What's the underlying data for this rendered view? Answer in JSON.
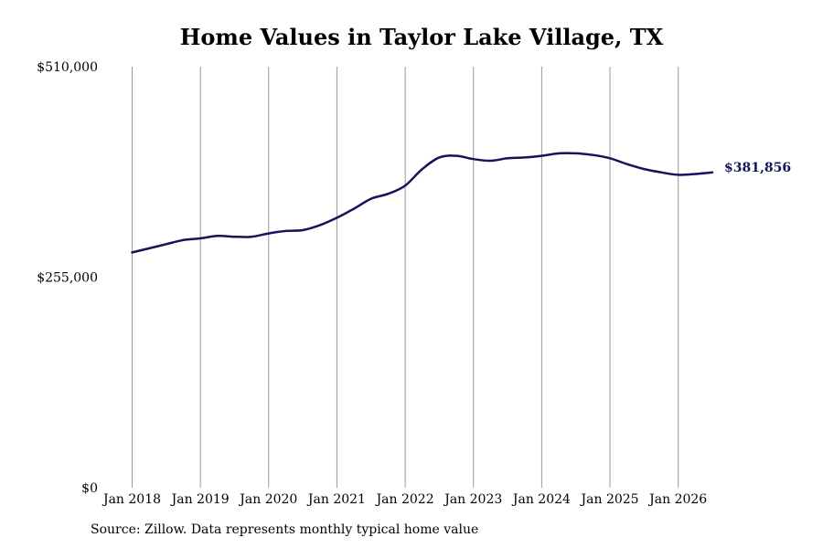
{
  "chart_data": {
    "type": "line",
    "title": "Home Values in Taylor Lake Village, TX",
    "xlabel": "",
    "ylabel": "",
    "ylim": [
      0,
      510000
    ],
    "y_ticks": [
      "$0",
      "$255,000",
      "$510,000"
    ],
    "x_ticks": [
      "Jan 2018",
      "Jan 2019",
      "Jan 2020",
      "Jan 2021",
      "Jan 2022",
      "Jan 2023",
      "Jan 2024",
      "Jan 2025",
      "Jan 2026"
    ],
    "grid": "vertical",
    "series": [
      {
        "color": "#14145c",
        "end_label": "$381,856",
        "x": [
          "2018-01",
          "2018-04",
          "2018-07",
          "2018-10",
          "2019-01",
          "2019-04",
          "2019-07",
          "2019-10",
          "2020-01",
          "2020-04",
          "2020-07",
          "2020-10",
          "2021-01",
          "2021-04",
          "2021-07",
          "2021-10",
          "2022-01",
          "2022-04",
          "2022-07",
          "2022-10",
          "2023-01",
          "2023-04",
          "2023-07",
          "2023-10",
          "2024-01",
          "2024-04",
          "2024-07",
          "2024-10",
          "2025-01",
          "2025-04",
          "2025-07",
          "2025-10",
          "2026-01",
          "2026-04",
          "2026-07"
        ],
        "values": [
          285000,
          290000,
          295000,
          300000,
          302000,
          305000,
          304000,
          304000,
          308000,
          311000,
          312000,
          318000,
          327000,
          338000,
          350000,
          356000,
          366000,
          386000,
          400000,
          402000,
          398000,
          396000,
          399000,
          400000,
          402000,
          405000,
          405000,
          403000,
          399000,
          392000,
          386000,
          382000,
          379000,
          380000,
          381856
        ]
      }
    ]
  },
  "source_note": "Source: Zillow. Data represents monthly typical home value"
}
